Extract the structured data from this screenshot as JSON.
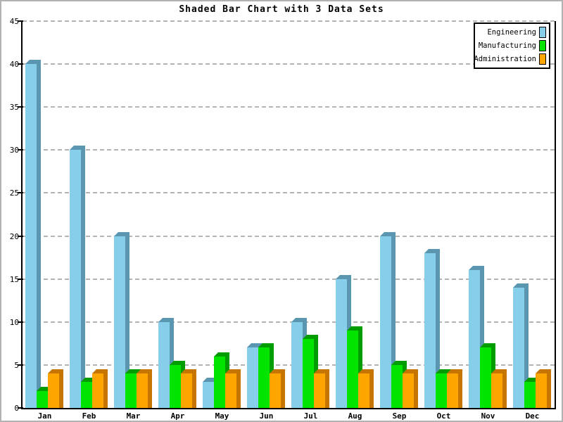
{
  "title": "Shaded Bar Chart with 3 Data Sets",
  "chart_data": {
    "type": "bar",
    "title": "Shaded Bar Chart with 3 Data Sets",
    "categories": [
      "Jan",
      "Feb",
      "Mar",
      "Apr",
      "May",
      "Jun",
      "Jul",
      "Aug",
      "Sep",
      "Oct",
      "Nov",
      "Dec"
    ],
    "series": [
      {
        "name": "Engineering",
        "color": "#87CEEB",
        "shade": "#5A96AF",
        "values": [
          40,
          30,
          20,
          10,
          3,
          7,
          10,
          15,
          20,
          18,
          16,
          14
        ]
      },
      {
        "name": "Manufacturing",
        "color": "#00E400",
        "shade": "#009C00",
        "values": [
          2,
          3,
          4,
          5,
          6,
          7,
          8,
          9,
          5,
          4,
          7,
          3
        ]
      },
      {
        "name": "Administration",
        "color": "#FFA500",
        "shade": "#C67600",
        "values": [
          4,
          4,
          4,
          4,
          4,
          4,
          4,
          4,
          4,
          4,
          4,
          4
        ]
      }
    ],
    "xlabel": "",
    "ylabel": "",
    "ylim": [
      0,
      45
    ],
    "y_ticks": [
      0,
      5,
      10,
      15,
      20,
      25,
      30,
      35,
      40,
      45
    ],
    "grid": true,
    "legend_position": "top-right",
    "colors": {
      "background": "#ffffff",
      "axis": "#000000",
      "grid": "#b4b4b4",
      "frame_border": "#b2b2b2"
    }
  }
}
